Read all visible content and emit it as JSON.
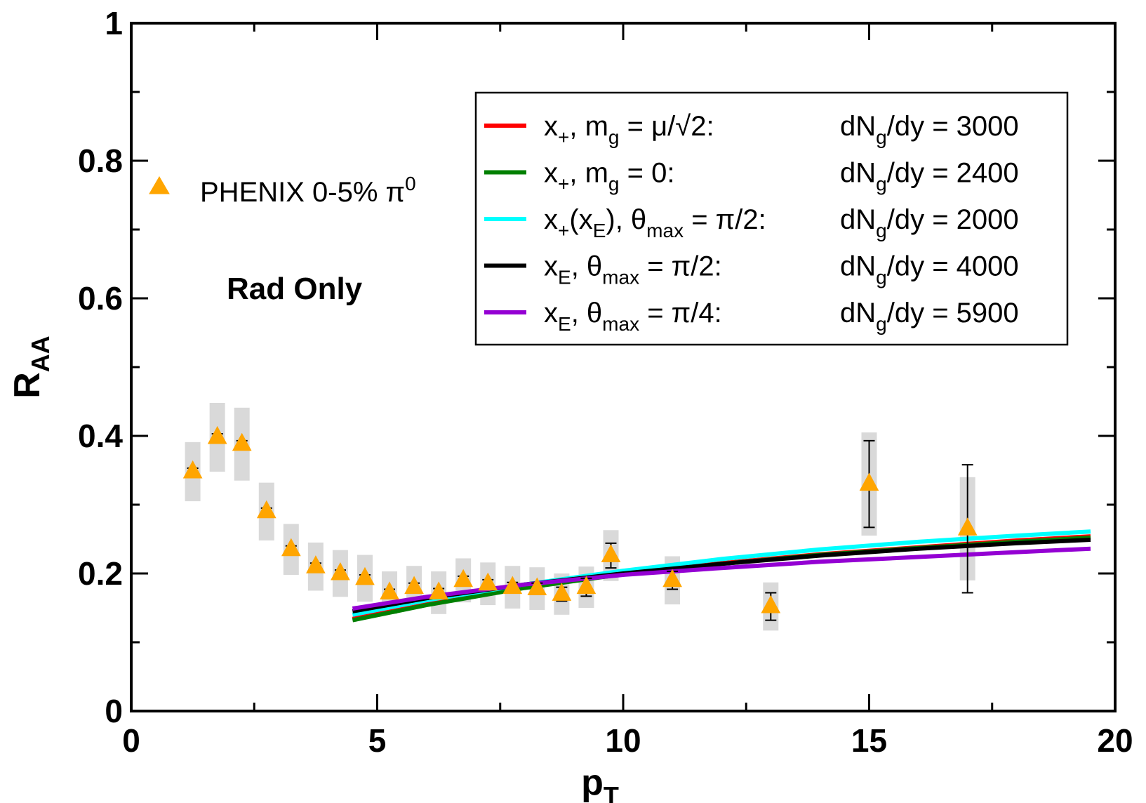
{
  "chart_data": {
    "type": "scatter",
    "title": "",
    "xlabel": {
      "main": "p",
      "sub": "T"
    },
    "ylabel": {
      "main": "R",
      "sub": "AA"
    },
    "xlim": [
      0,
      20
    ],
    "ylim": [
      0,
      1
    ],
    "xticks": [
      0,
      5,
      10,
      15,
      20
    ],
    "xtick_labels": [
      "0",
      "5",
      "10",
      "15",
      "20"
    ],
    "yticks": [
      0,
      0.2,
      0.4,
      0.6,
      0.8,
      1
    ],
    "ytick_labels": [
      "0",
      "0.2",
      "0.4",
      "0.6",
      "0.8",
      "1"
    ],
    "grid": false,
    "annotation": "Rad Only",
    "data_legend": {
      "label": "PHENIX 0-5% π",
      "superscript": "0",
      "color": "#FFA500"
    },
    "points": [
      {
        "x": 1.25,
        "y": 0.348,
        "err": 0.005,
        "sys": 0.043
      },
      {
        "x": 1.75,
        "y": 0.398,
        "err": 0.005,
        "sys": 0.05
      },
      {
        "x": 2.25,
        "y": 0.388,
        "err": 0.005,
        "sys": 0.053
      },
      {
        "x": 2.75,
        "y": 0.29,
        "err": 0.005,
        "sys": 0.042
      },
      {
        "x": 3.25,
        "y": 0.235,
        "err": 0.005,
        "sys": 0.037
      },
      {
        "x": 3.75,
        "y": 0.21,
        "err": 0.005,
        "sys": 0.035
      },
      {
        "x": 4.25,
        "y": 0.2,
        "err": 0.005,
        "sys": 0.034
      },
      {
        "x": 4.75,
        "y": 0.193,
        "err": 0.005,
        "sys": 0.034
      },
      {
        "x": 5.25,
        "y": 0.172,
        "err": 0.005,
        "sys": 0.031
      },
      {
        "x": 5.75,
        "y": 0.18,
        "err": 0.006,
        "sys": 0.031
      },
      {
        "x": 6.25,
        "y": 0.172,
        "err": 0.006,
        "sys": 0.031
      },
      {
        "x": 6.75,
        "y": 0.19,
        "err": 0.006,
        "sys": 0.032
      },
      {
        "x": 7.25,
        "y": 0.185,
        "err": 0.006,
        "sys": 0.031
      },
      {
        "x": 7.75,
        "y": 0.18,
        "err": 0.007,
        "sys": 0.031
      },
      {
        "x": 8.25,
        "y": 0.178,
        "err": 0.008,
        "sys": 0.031
      },
      {
        "x": 8.75,
        "y": 0.17,
        "err": 0.01,
        "sys": 0.03
      },
      {
        "x": 9.25,
        "y": 0.18,
        "err": 0.013,
        "sys": 0.03
      },
      {
        "x": 9.75,
        "y": 0.226,
        "err": 0.018,
        "sys": 0.037
      },
      {
        "x": 11.0,
        "y": 0.19,
        "err": 0.013,
        "sys": 0.035
      },
      {
        "x": 13.0,
        "y": 0.152,
        "err": 0.02,
        "sys": 0.035
      },
      {
        "x": 15.0,
        "y": 0.33,
        "err": 0.063,
        "sys": 0.075
      },
      {
        "x": 17.0,
        "y": 0.265,
        "err": 0.093,
        "sys": 0.075
      }
    ],
    "series": [
      {
        "legend_left": "x+, mg = μ/√2:",
        "legend_right": "dNg/dy = 3000",
        "color": "#FF0000",
        "x": [
          4.5,
          6,
          8,
          10,
          12,
          14,
          16,
          18,
          19.5
        ],
        "values": [
          0.134,
          0.155,
          0.18,
          0.2,
          0.215,
          0.228,
          0.238,
          0.248,
          0.254
        ]
      },
      {
        "legend_left": "x+, mg = 0:",
        "legend_right": "dNg/dy = 2400",
        "color": "#008000",
        "x": [
          4.5,
          6,
          8,
          10,
          12,
          14,
          16,
          18,
          19.5
        ],
        "values": [
          0.132,
          0.154,
          0.179,
          0.199,
          0.214,
          0.227,
          0.237,
          0.246,
          0.252
        ]
      },
      {
        "legend_left": "x+(xE), θmax = π/2:",
        "legend_right": "dNg/dy = 2000",
        "color": "#00FFFF",
        "x": [
          4.5,
          6,
          8,
          10,
          12,
          14,
          16,
          18,
          19.5
        ],
        "values": [
          0.14,
          0.161,
          0.184,
          0.204,
          0.221,
          0.235,
          0.246,
          0.255,
          0.261
        ]
      },
      {
        "legend_left": "xE, θmax = π/2:",
        "legend_right": "dNg/dy = 4000",
        "color": "#000000",
        "x": [
          4.5,
          6,
          8,
          10,
          12,
          14,
          16,
          18,
          19.5
        ],
        "values": [
          0.145,
          0.164,
          0.184,
          0.2,
          0.214,
          0.226,
          0.236,
          0.244,
          0.249
        ]
      },
      {
        "legend_left": "xE, θmax = π/4:",
        "legend_right": "dNg/dy = 5900",
        "color": "#9400D3",
        "x": [
          4.5,
          6,
          8,
          10,
          12,
          14,
          16,
          18,
          19.5
        ],
        "values": [
          0.149,
          0.166,
          0.184,
          0.198,
          0.208,
          0.217,
          0.224,
          0.231,
          0.236
        ]
      }
    ]
  }
}
